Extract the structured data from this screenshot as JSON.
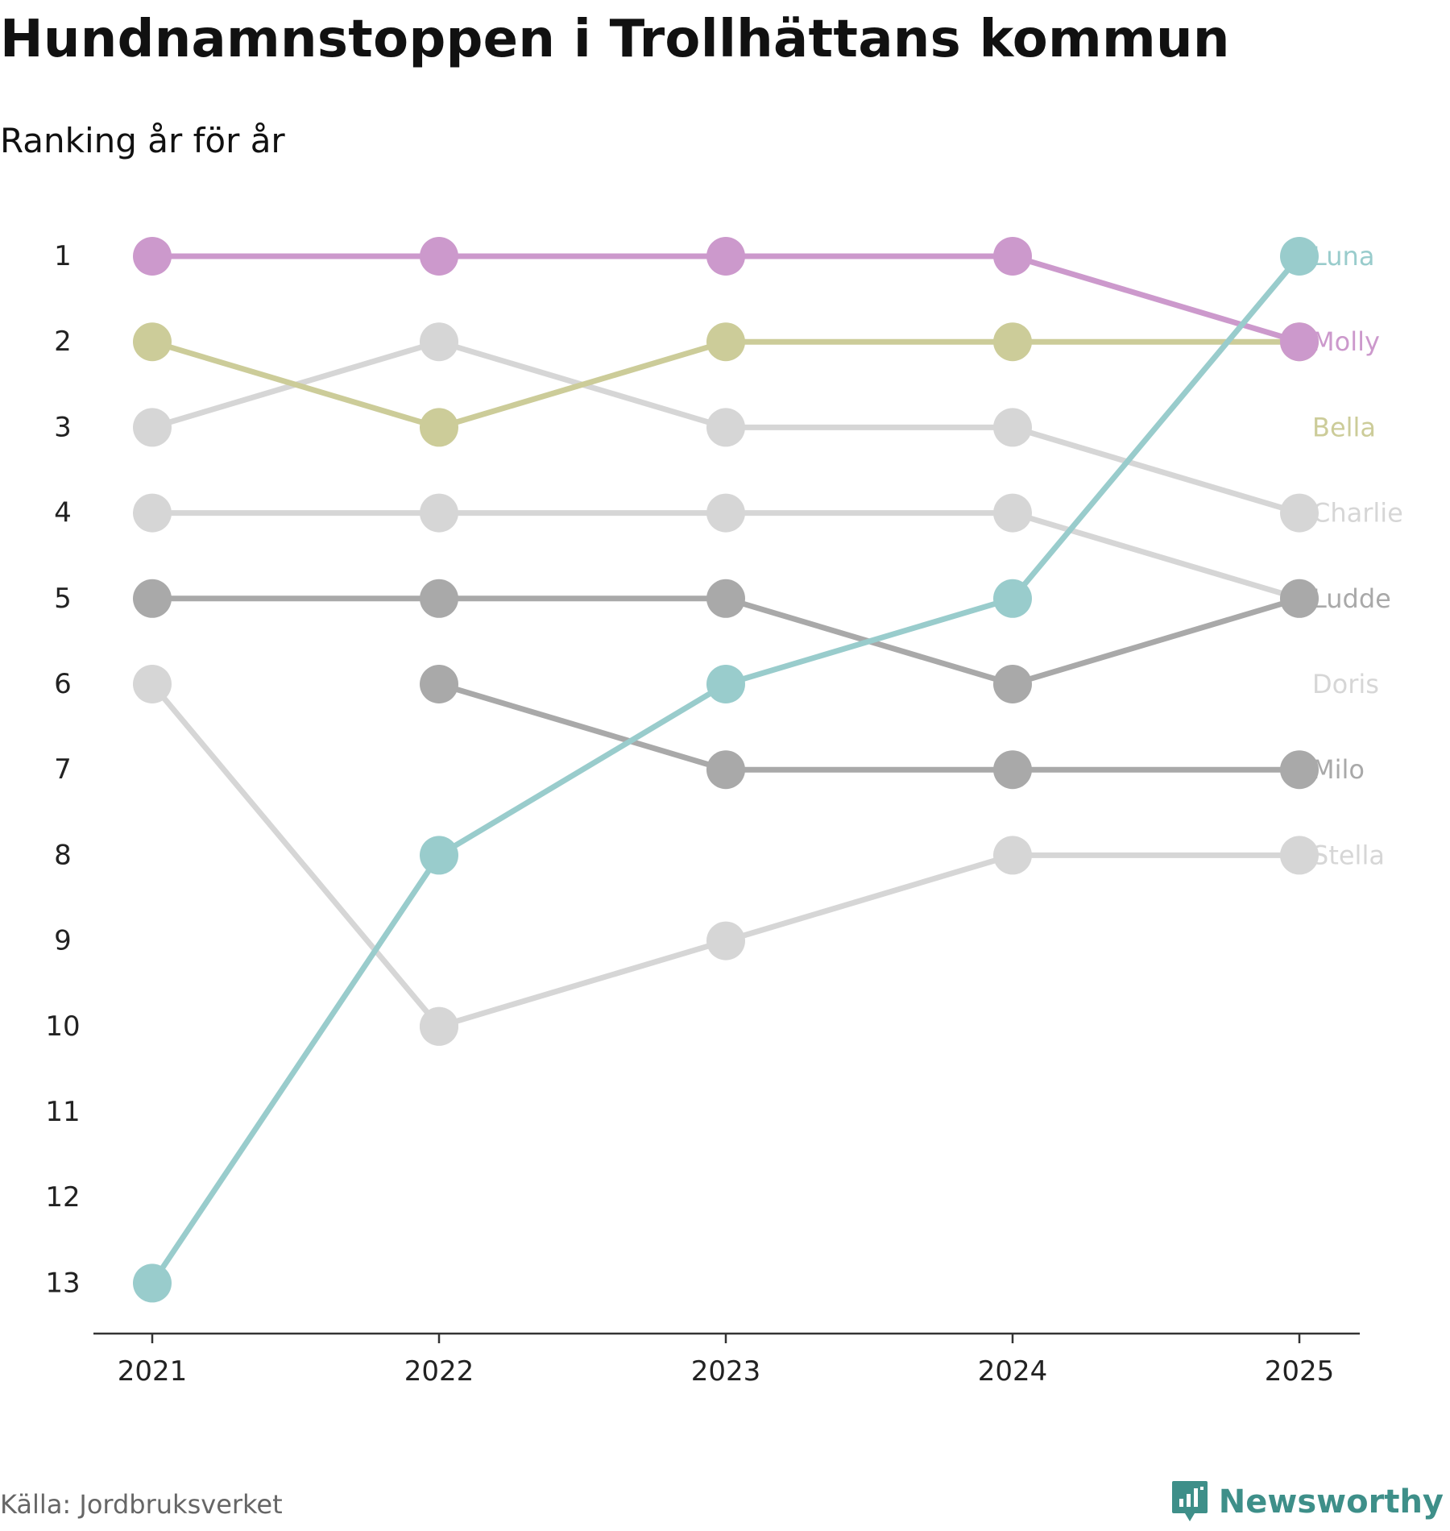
{
  "header": {
    "title": "Hundnamnstoppen i Trollhättans kommun",
    "subtitle": "Ranking år för år"
  },
  "footer": {
    "source": "Källa: Jordbruksverket",
    "brand": "Newsworthy",
    "brand_color": "#3e8f89"
  },
  "chart_data": {
    "type": "line",
    "title": "Hundnamnstoppen i Trollhättans kommun",
    "subtitle": "Ranking år för år",
    "xlabel": "",
    "ylabel": "",
    "x": [
      "2021",
      "2022",
      "2023",
      "2024",
      "2025"
    ],
    "y_ticks": [
      "1",
      "2",
      "3",
      "4",
      "5",
      "6",
      "7",
      "8",
      "9",
      "10",
      "11",
      "12",
      "13"
    ],
    "ylim": [
      1,
      13
    ],
    "y_inverted": true,
    "grid": false,
    "series": [
      {
        "name": "Stella",
        "color": "#d6d6d6",
        "values": [
          null,
          10,
          9,
          8,
          8
        ]
      },
      {
        "name": "Doris",
        "color": "#d6d6d6",
        "values": [
          6,
          10,
          null,
          null,
          null
        ]
      },
      {
        "name": "Charlie",
        "color": "#d6d6d6",
        "values": [
          3,
          2,
          3,
          3,
          4
        ]
      },
      {
        "name": "Ludde",
        "color": "#d6d6d6",
        "values": [
          4,
          4,
          4,
          4,
          5
        ]
      },
      {
        "name": "Milo",
        "color": "#a9a9a9",
        "values": [
          null,
          6,
          7,
          7,
          7
        ]
      },
      {
        "name": "Ludde",
        "color": "#a9a9a9",
        "values": [
          5,
          5,
          5,
          6,
          5
        ]
      },
      {
        "name": "Bella",
        "color": "#cccc99",
        "values": [
          2,
          3,
          2,
          2,
          2
        ]
      },
      {
        "name": "Molly",
        "color": "#cc99cc",
        "values": [
          1,
          1,
          1,
          1,
          2
        ]
      },
      {
        "name": "Luna",
        "color": "#99cccc",
        "values": [
          13,
          8,
          6,
          5,
          1
        ]
      }
    ],
    "end_labels": [
      {
        "name": "Luna",
        "rank": 1,
        "color": "#99cccc"
      },
      {
        "name": "Molly",
        "rank": 2,
        "color": "#cc99cc"
      },
      {
        "name": "Bella",
        "rank": 3,
        "color": "#cccc99"
      },
      {
        "name": "Charlie",
        "rank": 4,
        "color": "#d6d6d6"
      },
      {
        "name": "Ludde",
        "rank": 5,
        "color": "#a9a9a9"
      },
      {
        "name": "Doris",
        "rank": 6,
        "color": "#d6d6d6"
      },
      {
        "name": "Milo",
        "rank": 7,
        "color": "#a9a9a9"
      },
      {
        "name": "Stella",
        "rank": 8,
        "color": "#d6d6d6"
      }
    ]
  }
}
